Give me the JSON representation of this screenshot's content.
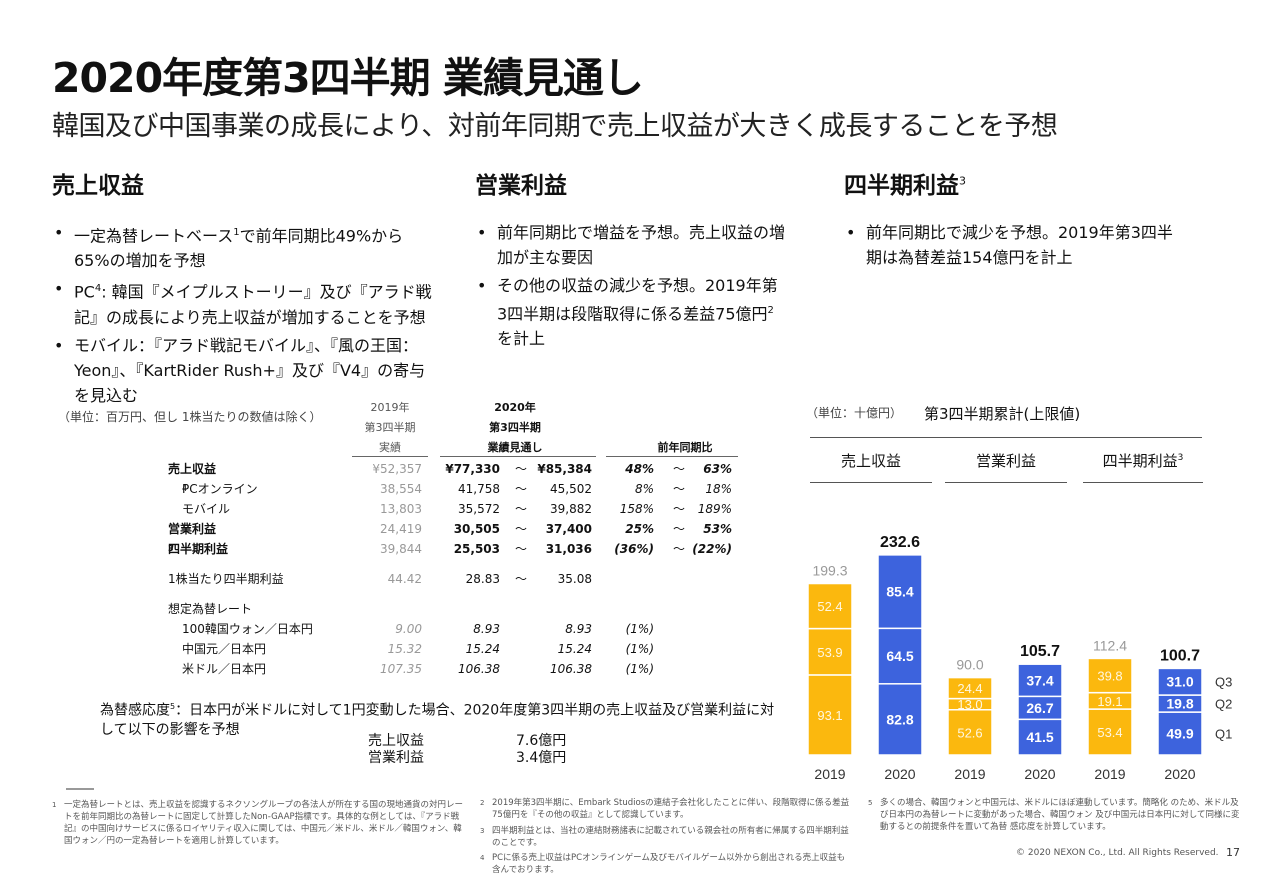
{
  "header": {
    "title": "2020年度第3四半期 業績見通し",
    "subtitle": "韓国及び中国事業の成長により、対前年同期で売上収益が大きく成長することを予想"
  },
  "columns": [
    {
      "heading": "売上収益",
      "heading_sup": "",
      "bullets": [
        {
          "text": "一定為替レートベース",
          "sup": "1",
          "tail": "で前年同期比49%から65%の増加を予想"
        },
        {
          "text": "PC",
          "sup": "4",
          "tail": ": 韓国『メイプルストーリー』及び『アラド戦記』の成長により売上収益が増加することを予想"
        },
        {
          "text": "モバイル：『アラド戦記モバイル』、『風の王国：Yeon』、『KartRider Rush+』及び『V4』の寄与を見込む",
          "sup": "",
          "tail": ""
        }
      ]
    },
    {
      "heading": "営業利益",
      "heading_sup": "",
      "bullets": [
        {
          "text": "前年同期比で増益を予想。売上収益の増加が主な要因",
          "sup": "",
          "tail": ""
        },
        {
          "text": "その他の収益の減少を予想。2019年第3四半期は段階取得に係る差益75億円",
          "sup": "2",
          "tail": "を計上"
        }
      ]
    },
    {
      "heading": "四半期利益",
      "heading_sup": "3",
      "bullets": [
        {
          "text": "前年同期比で減少を予想。2019年第3四半期は為替差益154億円を計上",
          "sup": "",
          "tail": ""
        }
      ]
    }
  ],
  "table": {
    "unit_note": "（単位：百万円、但し 1株当たりの数値は除く）",
    "head_2019": [
      "2019年",
      "第3四半期",
      "実績"
    ],
    "head_2020": [
      "2020年",
      "第3四半期",
      "業績見通し"
    ],
    "head_yoy": "前年同期比",
    "tilde": "～",
    "rows": [
      {
        "label": "売上収益",
        "sup": "",
        "y2019": "¥52,357",
        "low": "¥77,330",
        "high": "¥85,384",
        "yoy_low": "48%",
        "yoy_high": "63%"
      },
      {
        "label": "PCオンライン",
        "sup": "4",
        "y2019": "38,554",
        "low": "41,758",
        "high": "45,502",
        "yoy_low": "8%",
        "yoy_high": "18%"
      },
      {
        "label": "モバイル",
        "sup": "",
        "y2019": "13,803",
        "low": "35,572",
        "high": "39,882",
        "yoy_low": "158%",
        "yoy_high": "189%"
      },
      {
        "label": "営業利益",
        "sup": "",
        "y2019": "24,419",
        "low": "30,505",
        "high": "37,400",
        "yoy_low": "25%",
        "yoy_high": "53%"
      },
      {
        "label": "四半期利益",
        "sup": "3",
        "y2019": "39,844",
        "low": "25,503",
        "high": "31,036",
        "yoy_low": "(36%)",
        "yoy_high": "(22%)"
      },
      {
        "label": "1株当たり四半期利益",
        "sup": "",
        "y2019": "44.42",
        "low": "28.83",
        "high": "35.08",
        "yoy_low": "",
        "yoy_high": ""
      }
    ],
    "fx_heading": "想定為替レート",
    "fx_rows": [
      {
        "label": "100韓国ウォン／日本円",
        "y2019": "9.00",
        "low": "8.93",
        "high": "8.93",
        "yoy": "(1%)"
      },
      {
        "label": "中国元／日本円",
        "y2019": "15.32",
        "low": "15.24",
        "high": "15.24",
        "yoy": "(1%)"
      },
      {
        "label": "米ドル／日本円",
        "y2019": "107.35",
        "low": "106.38",
        "high": "106.38",
        "yoy": "(1%)"
      }
    ]
  },
  "fx_sensitivity": {
    "text_a": "為替感応度",
    "sup": "5",
    "text_b": "：日本円が米ドルに対して1円変動した場合、2020年度第3四半期の売上収益及び営業利益に対して以下の影響を予想",
    "items": [
      {
        "label": "売上収益",
        "value": "7.6億円"
      },
      {
        "label": "営業利益",
        "value": "3.4億円"
      }
    ]
  },
  "chart_data": {
    "type": "bar",
    "stacked": true,
    "unit_note": "（単位：十億円）",
    "title": "第3四半期累計(上限値)",
    "stack_labels": [
      "Q1",
      "Q2",
      "Q3"
    ],
    "colors": {
      "2019": "#FBB80E",
      "2020": "#3D63DD"
    },
    "groups": [
      {
        "name": "売上収益",
        "sup": "",
        "bars": [
          {
            "year": "2019",
            "segments": [
              93.1,
              53.9,
              52.4
            ],
            "total": 199.3
          },
          {
            "year": "2020",
            "segments": [
              82.8,
              64.5,
              85.4
            ],
            "total": 232.6
          }
        ]
      },
      {
        "name": "営業利益",
        "sup": "",
        "bars": [
          {
            "year": "2019",
            "segments": [
              52.6,
              13.0,
              24.4
            ],
            "total": 90.0
          },
          {
            "year": "2020",
            "segments": [
              41.5,
              26.7,
              37.4
            ],
            "total": 105.7
          }
        ]
      },
      {
        "name": "四半期利益",
        "sup": "3",
        "bars": [
          {
            "year": "2019",
            "segments": [
              53.4,
              19.1,
              39.8
            ],
            "total": 112.4
          },
          {
            "year": "2020",
            "segments": [
              49.9,
              19.8,
              31.0
            ],
            "total": 100.7
          }
        ]
      }
    ]
  },
  "footnotes": {
    "f1": {
      "num": "1",
      "text": "一定為替レートとは、売上収益を認識するネクソングループの各法人が所在する国の現地通貨の対円レートを前年同期比の為替レートに固定して計算したNon-GAAP指標です。具体的な例としては、『アラド戦記』の中国向けサービスに係るロイヤリティ収入に関しては、中国元／米ドル、米ドル／韓国ウォン、韓国ウォン／円の一定為替レートを適用し計算しています。"
    },
    "f2": {
      "num": "2",
      "text": "2019年第3四半期に、Embark Studiosの連結子会社化したことに伴い、段階取得に係る差益75億円を『その他の収益』として認識しています。"
    },
    "f3": {
      "num": "3",
      "text": "四半期利益とは、当社の連結財務諸表に記載されている親会社の所有者に帰属する四半期利益のことです。"
    },
    "f4": {
      "num": "4",
      "text": "PCに係る売上収益はPCオンラインゲーム及びモバイルゲーム以外から創出される売上収益も含んでおります。"
    },
    "f5": {
      "num": "5",
      "text": "多くの場合、韓国ウォンと中国元は、米ドルにほぼ連動しています。簡略化 のため、米ドル及び日本円の為替レートに変動があった場合、韓国ウォン 及び中国元は日本円に対して同様に変動するとの前提条件を置いて為替 感応度を計算しています。"
    }
  },
  "footer": {
    "copyright": "© 2020 NEXON Co., Ltd. All Rights Reserved.",
    "page": "17"
  }
}
